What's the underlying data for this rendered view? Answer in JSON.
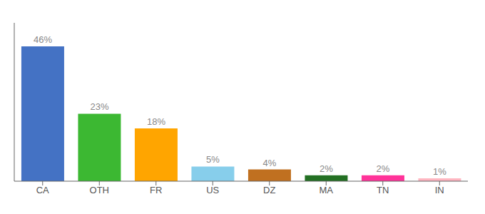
{
  "chart_data": {
    "type": "bar",
    "categories": [
      "CA",
      "OTH",
      "FR",
      "US",
      "DZ",
      "MA",
      "TN",
      "IN"
    ],
    "values": [
      46,
      23,
      18,
      5,
      4,
      2,
      2,
      1
    ],
    "value_labels": [
      "46%",
      "23%",
      "18%",
      "5%",
      "4%",
      "2%",
      "2%",
      "1%"
    ],
    "colors": [
      "#4472C4",
      "#3CB832",
      "#FFA500",
      "#87CEEB",
      "#C07020",
      "#237023",
      "#FF3399",
      "#FFB6C1"
    ],
    "ylim": [
      0,
      54
    ],
    "data_labels": true,
    "tick_labels": "x",
    "grid": false
  }
}
